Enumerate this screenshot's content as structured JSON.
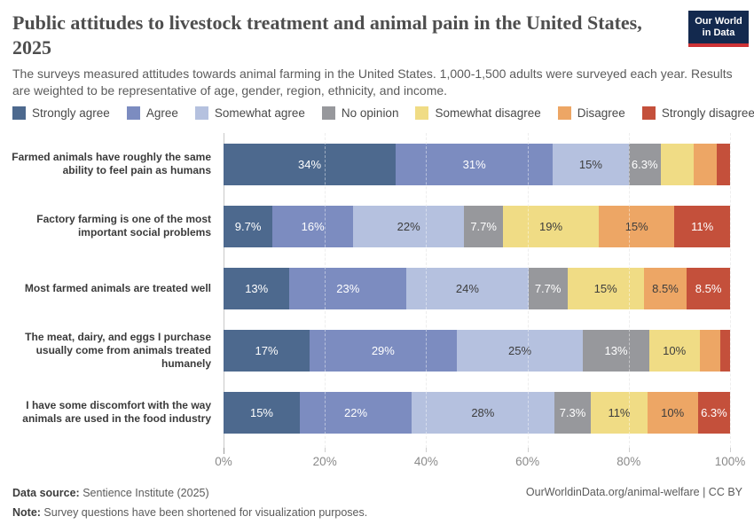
{
  "header": {
    "title": "Public attitudes to livestock treatment and animal pain in the United States, 2025",
    "subtitle": "The surveys measured attitudes towards animal farming in the United States. 1,000-1,500 adults were surveyed each year. Results are weighted to be representative of age, gender, region, ethnicity, and income.",
    "logo": {
      "line1": "Our World",
      "line2": "in Data",
      "bg_color": "#13294e",
      "accent_color": "#cd3235"
    }
  },
  "legend": {
    "items": [
      {
        "label": "Strongly agree",
        "color": "#4D698E"
      },
      {
        "label": "Agree",
        "color": "#7C8CC0"
      },
      {
        "label": "Somewhat agree",
        "color": "#B5C1DF"
      },
      {
        "label": "No opinion",
        "color": "#97989C"
      },
      {
        "label": "Somewhat disagree",
        "color": "#F0DC85"
      },
      {
        "label": "Disagree",
        "color": "#EDA665"
      },
      {
        "label": "Strongly disagree",
        "color": "#C4503B"
      }
    ]
  },
  "chart_data": {
    "type": "bar",
    "orientation": "horizontal",
    "stacked": true,
    "grid": "dashed-vertical",
    "xlim": [
      0,
      100
    ],
    "xticks": [
      "0%",
      "20%",
      "40%",
      "60%",
      "80%",
      "100%"
    ],
    "xtick_values": [
      0,
      20,
      40,
      60,
      80,
      100
    ],
    "categories": [
      "Farmed animals have roughly the same ability to feel pain as humans",
      "Factory farming is one of the most important social problems",
      "Most farmed animals are treated well",
      "The meat, dairy, and eggs I purchase usually come from animals treated humanely",
      "I have some discomfort with the way animals are used in the food industry"
    ],
    "series": [
      {
        "name": "Strongly agree",
        "color": "#4D698E",
        "text_color": "#ffffff",
        "values": [
          34,
          9.7,
          13,
          17,
          15
        ],
        "labels": [
          "34%",
          "9.7%",
          "13%",
          "17%",
          "15%"
        ]
      },
      {
        "name": "Agree",
        "color": "#7C8CC0",
        "text_color": "#ffffff",
        "values": [
          31,
          16,
          23,
          29,
          22
        ],
        "labels": [
          "31%",
          "16%",
          "23%",
          "29%",
          "22%"
        ]
      },
      {
        "name": "Somewhat agree",
        "color": "#B5C1DF",
        "text_color": "#3d3d3d",
        "values": [
          15,
          22,
          24,
          25,
          28
        ],
        "labels": [
          "15%",
          "22%",
          "24%",
          "25%",
          "28%"
        ]
      },
      {
        "name": "No opinion",
        "color": "#97989C",
        "text_color": "#ffffff",
        "values": [
          6.3,
          7.7,
          7.7,
          13,
          7.3
        ],
        "labels": [
          "6.3%",
          "7.7%",
          "7.7%",
          "13%",
          "7.3%"
        ]
      },
      {
        "name": "Somewhat disagree",
        "color": "#F0DC85",
        "text_color": "#3d3d3d",
        "values": [
          6.6,
          19,
          15,
          10,
          11
        ],
        "labels": [
          "",
          "19%",
          "15%",
          "10%",
          "11%"
        ]
      },
      {
        "name": "Disagree",
        "color": "#EDA665",
        "text_color": "#3d3d3d",
        "values": [
          4.4,
          15,
          8.5,
          4,
          10
        ],
        "labels": [
          "",
          "15%",
          "8.5%",
          "",
          "10%"
        ]
      },
      {
        "name": "Strongly disagree",
        "color": "#C4503B",
        "text_color": "#ffffff",
        "values": [
          2.7,
          11,
          8.5,
          2,
          6.3
        ],
        "labels": [
          "",
          "11%",
          "8.5%",
          "",
          "6.3%"
        ]
      }
    ]
  },
  "footer": {
    "source_label": "Data source:",
    "source_value": " Sentience Institute (2025)",
    "note_label": "Note:",
    "note_value": " Survey questions have been shortened for visualization purposes.",
    "link": "OurWorldinData.org/animal-welfare",
    "separator": " | ",
    "license": "CC BY"
  }
}
